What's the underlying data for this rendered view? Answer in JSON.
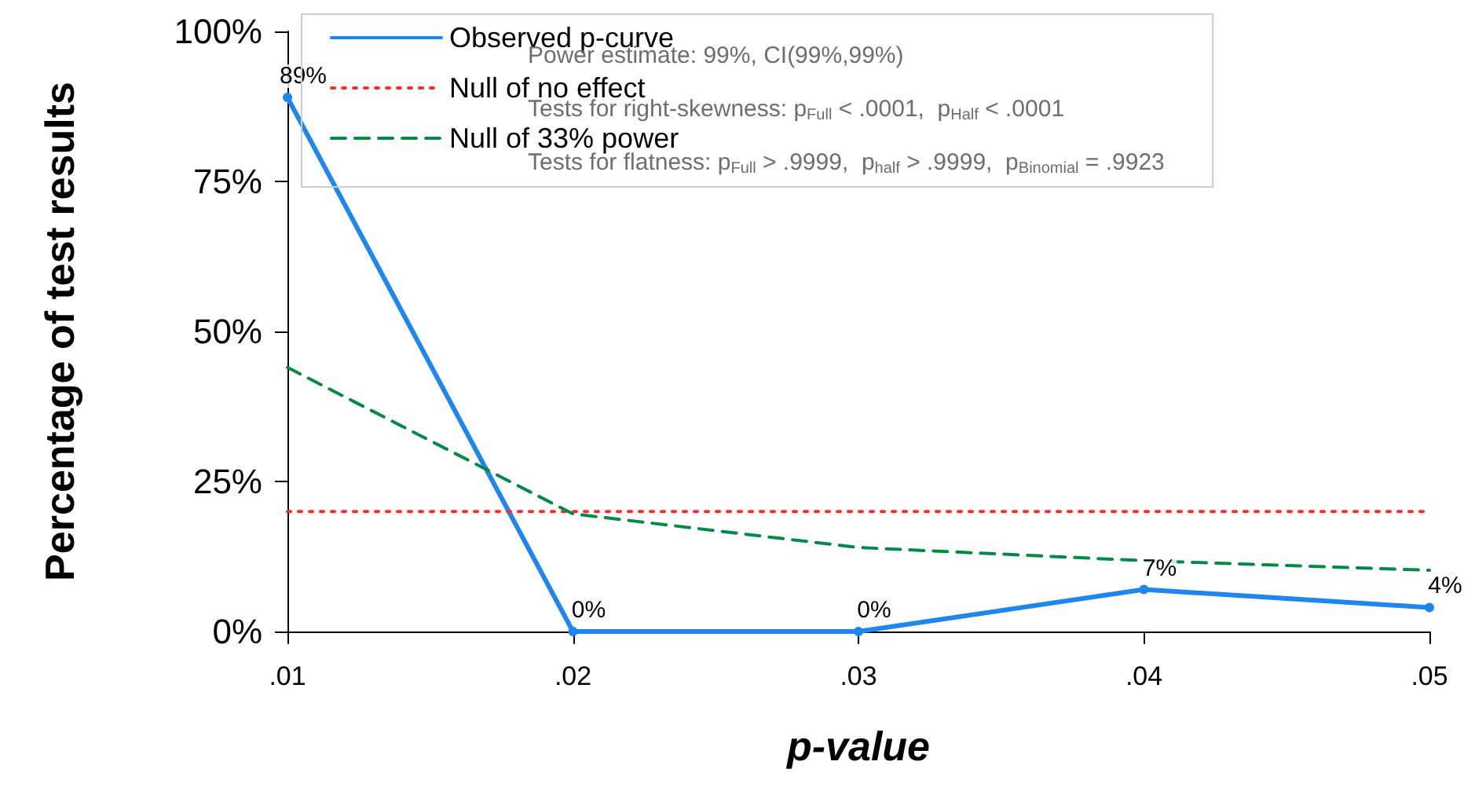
{
  "chart_data": {
    "type": "line",
    "xlabel": "p-value",
    "ylabel": "Percentage of test results",
    "x": [
      0.01,
      0.02,
      0.03,
      0.04,
      0.05
    ],
    "xlim": [
      0.01,
      0.05
    ],
    "xticks": [
      {
        "value": 0.01,
        "label": ".01"
      },
      {
        "value": 0.02,
        "label": ".02"
      },
      {
        "value": 0.03,
        "label": ".03"
      },
      {
        "value": 0.04,
        "label": ".04"
      },
      {
        "value": 0.05,
        "label": ".05"
      }
    ],
    "ylim": [
      0,
      100
    ],
    "yticks": [
      {
        "value": 0,
        "label": "0%"
      },
      {
        "value": 25,
        "label": "25%"
      },
      {
        "value": 50,
        "label": "50%"
      },
      {
        "value": 75,
        "label": "75%"
      },
      {
        "value": 100,
        "label": "100%"
      }
    ],
    "series": [
      {
        "name": "Observed p-curve",
        "color": "#1e86ec",
        "values": [
          89,
          0,
          0,
          7,
          4
        ],
        "value_labels": [
          "89%",
          "0%",
          "0%",
          "7%",
          "4%"
        ],
        "marker": "circle",
        "line_style": "solid"
      },
      {
        "name": "Null of no effect",
        "color": "#ff2a2a",
        "values": [
          20,
          20,
          20,
          20,
          20
        ],
        "marker": "none",
        "line_style": "dotted"
      },
      {
        "name": "Null of 33% power",
        "color": "#008a45",
        "values": [
          44,
          19.6,
          14,
          11.8,
          10.2
        ],
        "marker": "none",
        "line_style": "dashed"
      }
    ],
    "annotations": [
      "Power estimate: 99%, CI(99%,99%)",
      "Tests for right-skewness: p$_{Full}$ < .0001,  p$_{Half}$ < .0001",
      "Tests for flatness: p$_{Full}$ > .9999,  p$_{half}$ > .9999,  p$_{Binomial}$ = .9923"
    ],
    "grid": false,
    "legend": "top"
  }
}
